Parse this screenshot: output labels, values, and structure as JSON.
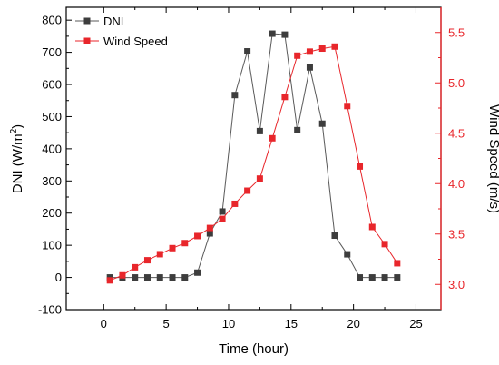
{
  "chart_data": {
    "type": "line",
    "title": "",
    "xlabel": "Time (hour)",
    "ylabel_left_main": "DNI (W/m",
    "ylabel_left_sup": "2",
    "ylabel_left_tail": ")",
    "ylabel_right": "Wind Speed (m/s)",
    "xlim": [
      -3,
      27
    ],
    "ylim_left": [
      -100,
      840
    ],
    "ylim_right": [
      2.75,
      5.75
    ],
    "x_ticks": [
      0,
      5,
      10,
      15,
      20,
      25
    ],
    "y_ticks_left": [
      -100,
      0,
      100,
      200,
      300,
      400,
      500,
      600,
      700,
      800
    ],
    "y_ticks_right": [
      3.0,
      3.5,
      4.0,
      4.5,
      5.0,
      5.5
    ],
    "y_tick_labels_right": [
      "3.0",
      "3.5",
      "4.0",
      "4.5",
      "5.0",
      "5.5"
    ],
    "grid": false,
    "legend_position": "top-left",
    "x": [
      0.5,
      1.5,
      2.5,
      3.5,
      4.5,
      5.5,
      6.5,
      7.5,
      8.5,
      9.5,
      10.5,
      11.5,
      12.5,
      13.5,
      14.5,
      15.5,
      16.5,
      17.5,
      18.5,
      19.5,
      20.5,
      21.5,
      22.5,
      23.5
    ],
    "series": [
      {
        "name": "DNI",
        "axis": "left",
        "color": "#3d3d3d",
        "line_color": "#595959",
        "values": [
          0,
          0,
          0,
          0,
          0,
          0,
          0,
          15,
          137,
          205,
          567,
          703,
          455,
          758,
          755,
          458,
          653,
          478,
          130,
          72,
          0,
          0,
          0,
          0
        ]
      },
      {
        "name": "Wind Speed",
        "axis": "right",
        "color": "#e8262b",
        "line_color": "#e8262b",
        "values": [
          3.04,
          3.09,
          3.17,
          3.24,
          3.3,
          3.36,
          3.41,
          3.48,
          3.56,
          3.65,
          3.8,
          3.93,
          4.05,
          4.45,
          4.86,
          5.27,
          5.31,
          5.34,
          5.36,
          4.77,
          4.17,
          3.57,
          3.4,
          3.21
        ]
      }
    ]
  }
}
